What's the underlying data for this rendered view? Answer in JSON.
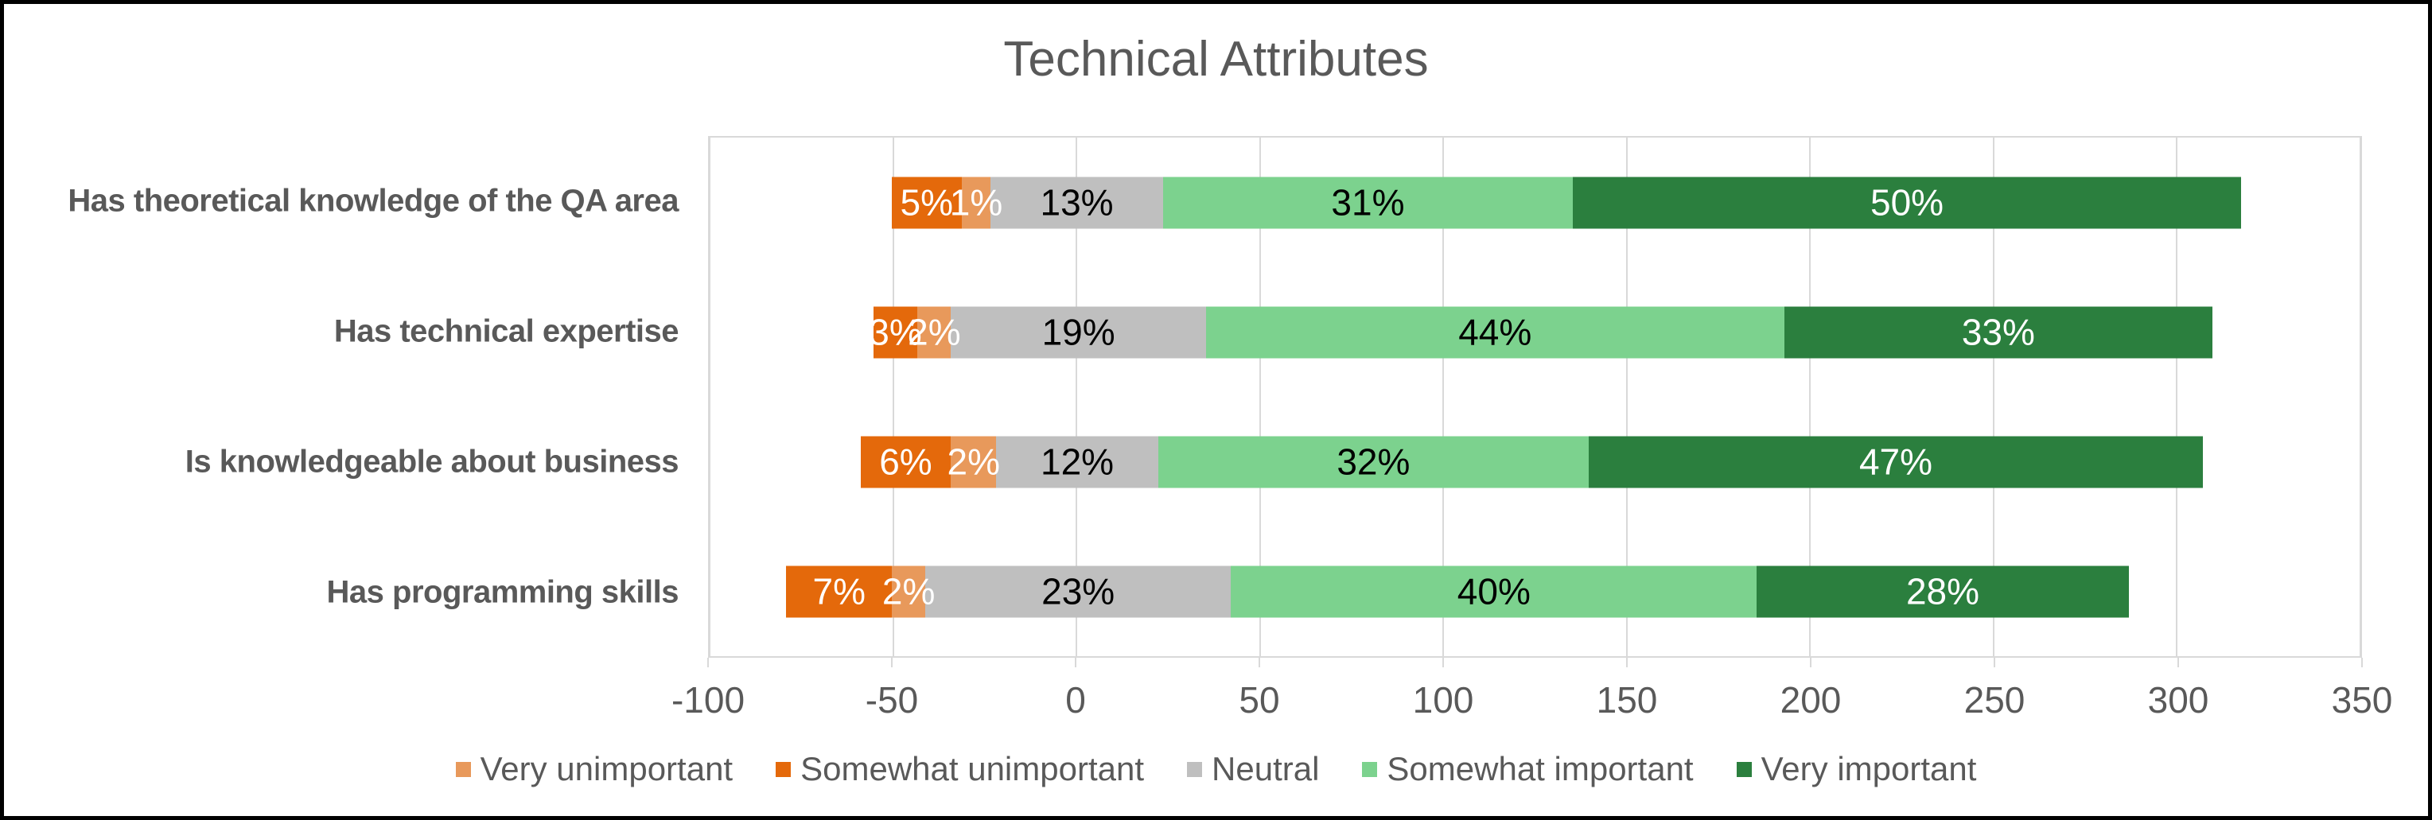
{
  "figure": {
    "title": "Technical Attributes",
    "title_color": "#595959",
    "background": "#FFFFFF",
    "border_color": "#000000",
    "gridline_color": "#D9D9D9",
    "axis_text_color": "#595959",
    "category_text_color": "#595959",
    "legend_text_color": "#595959"
  },
  "chart_data": {
    "type": "bar",
    "orientation": "horizontal-diverging-stacked",
    "title": "Technical Attributes",
    "grid": true,
    "legend_position": "bottom",
    "x_axis": {
      "min": -100,
      "max": 350,
      "tick_step": 50,
      "ticks": [
        {
          "value": -100,
          "label": "-100"
        },
        {
          "value": -50,
          "label": "-50"
        },
        {
          "value": 0,
          "label": "0"
        },
        {
          "value": 50,
          "label": "50"
        },
        {
          "value": 100,
          "label": "100"
        },
        {
          "value": 150,
          "label": "150"
        },
        {
          "value": 200,
          "label": "200"
        },
        {
          "value": 250,
          "label": "250"
        },
        {
          "value": 300,
          "label": "300"
        },
        {
          "value": 350,
          "label": "350"
        }
      ]
    },
    "series": [
      {
        "name": "Very unimportant",
        "color": "#E8995B",
        "label_text_color": "#FFFFFF"
      },
      {
        "name": "Somewhat unimportant",
        "color": "#E4690B",
        "label_text_color": "#FFFFFF"
      },
      {
        "name": "Neutral",
        "color": "#BFBFBF",
        "label_text_color": "#000000"
      },
      {
        "name": "Somewhat important",
        "color": "#7CD28E",
        "label_text_color": "#000000"
      },
      {
        "name": "Very important",
        "color": "#2B7F3E",
        "label_text_color": "#FFFFFF"
      }
    ],
    "legend_order": [
      "Very unimportant",
      "Somewhat unimportant",
      "Neutral",
      "Somewhat important",
      "Very important"
    ],
    "categories": [
      "Has theoretical knowledge of the QA area",
      "Has technical expertise",
      "Is knowledgeable about business",
      "Has programming skills"
    ],
    "rows": [
      {
        "category": "Has theoretical knowledge of the QA area",
        "segments": [
          {
            "series": "Somewhat unimportant",
            "label": "5%",
            "pct": 5,
            "start": -50.4,
            "end": -31.3
          },
          {
            "series": "Very unimportant",
            "label": "1%",
            "pct": 1,
            "start": -31.3,
            "end": -23.4
          },
          {
            "series": "Neutral",
            "label": "13%",
            "pct": 13,
            "start": -23.4,
            "end": 23.6
          },
          {
            "series": "Somewhat important",
            "label": "31%",
            "pct": 31,
            "start": 23.6,
            "end": 135.3
          },
          {
            "series": "Very important",
            "label": "50%",
            "pct": 50,
            "start": 135.3,
            "end": 317.5
          }
        ]
      },
      {
        "category": "Has technical expertise",
        "segments": [
          {
            "series": "Somewhat unimportant",
            "label": "3%",
            "pct": 3,
            "start": -55.4,
            "end": -43.3
          },
          {
            "series": "Very unimportant",
            "label": "2%",
            "pct": 2,
            "start": -43.3,
            "end": -34.2
          },
          {
            "series": "Neutral",
            "label": "19%",
            "pct": 19,
            "start": -34.2,
            "end": 35.3
          },
          {
            "series": "Somewhat important",
            "label": "44%",
            "pct": 44,
            "start": 35.3,
            "end": 192.9
          },
          {
            "series": "Very important",
            "label": "33%",
            "pct": 33,
            "start": 192.9,
            "end": 309.7
          }
        ]
      },
      {
        "category": "Is knowledgeable about business",
        "segments": [
          {
            "series": "Somewhat unimportant",
            "label": "6%",
            "pct": 6,
            "start": -58.9,
            "end": -34.2
          },
          {
            "series": "Very unimportant",
            "label": "2%",
            "pct": 2,
            "start": -34.2,
            "end": -21.9
          },
          {
            "series": "Neutral",
            "label": "12%",
            "pct": 12,
            "start": -21.9,
            "end": 22.3
          },
          {
            "series": "Somewhat important",
            "label": "32%",
            "pct": 32,
            "start": 22.3,
            "end": 139.6
          },
          {
            "series": "Very important",
            "label": "47%",
            "pct": 47,
            "start": 139.6,
            "end": 307.1
          }
        ]
      },
      {
        "category": "Has programming skills",
        "segments": [
          {
            "series": "Somewhat unimportant",
            "label": "7%",
            "pct": 7,
            "start": -79.1,
            "end": -50.3
          },
          {
            "series": "Very unimportant",
            "label": "2%",
            "pct": 2,
            "start": -50.3,
            "end": -41.2
          },
          {
            "series": "Neutral",
            "label": "23%",
            "pct": 23,
            "start": -41.2,
            "end": 42.1
          },
          {
            "series": "Somewhat important",
            "label": "40%",
            "pct": 40,
            "start": 42.1,
            "end": 185.5
          },
          {
            "series": "Very important",
            "label": "28%",
            "pct": 28,
            "start": 185.5,
            "end": 286.8
          }
        ]
      }
    ]
  }
}
